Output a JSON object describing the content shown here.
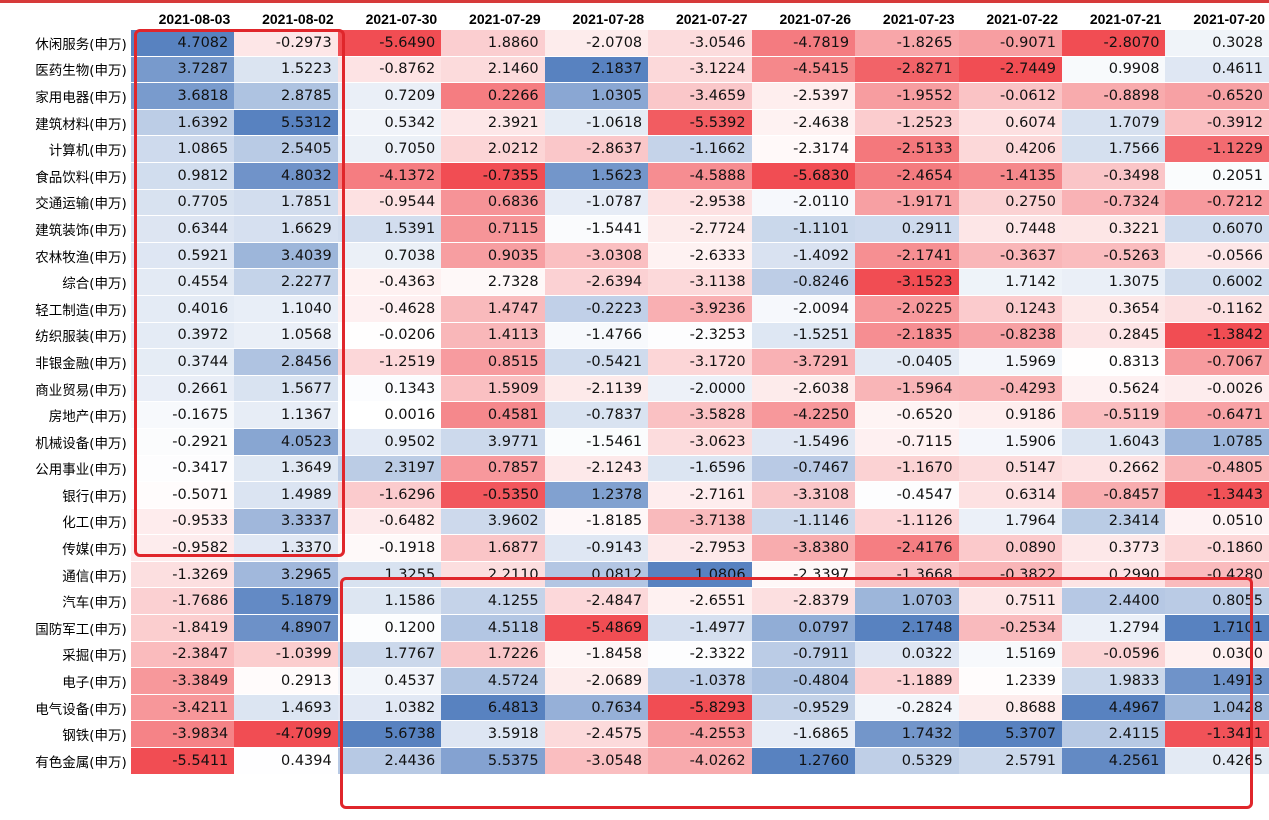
{
  "columns": [
    "2021-08-03",
    "2021-08-02",
    "2021-07-30",
    "2021-07-29",
    "2021-07-28",
    "2021-07-27",
    "2021-07-26",
    "2021-07-23",
    "2021-07-22",
    "2021-07-21",
    "2021-07-20"
  ],
  "colors": {
    "positive": "#4f7bbd",
    "negative": "#f0444a",
    "neutral": "#ffffff",
    "highlight_border": "#e0262b",
    "top_line": "#d63a3a"
  },
  "rows": [
    {
      "label": "休闲服务(申万)",
      "values": [
        "4.7082",
        "-0.2973",
        "-5.6490",
        "1.8860",
        "-2.0708",
        "-3.0546",
        "-4.7819",
        "-1.8265",
        "-0.9071",
        "-2.8070",
        "0.3028"
      ]
    },
    {
      "label": "医药生物(申万)",
      "values": [
        "3.7287",
        "1.5223",
        "-0.8762",
        "2.1460",
        "2.1837",
        "-3.1224",
        "-4.5415",
        "-2.8271",
        "-2.7449",
        "0.9908",
        "0.4611"
      ]
    },
    {
      "label": "家用电器(申万)",
      "values": [
        "3.6818",
        "2.8785",
        "0.7209",
        "0.2266",
        "1.0305",
        "-3.4659",
        "-2.5397",
        "-1.9552",
        "-0.0612",
        "-0.8898",
        "-0.6520"
      ]
    },
    {
      "label": "建筑材料(申万)",
      "values": [
        "1.6392",
        "5.5312",
        "0.5342",
        "2.3921",
        "-1.0618",
        "-5.5392",
        "-2.4638",
        "-1.2523",
        "0.6074",
        "1.7079",
        "-0.3912"
      ]
    },
    {
      "label": "计算机(申万)",
      "values": [
        "1.0865",
        "2.5405",
        "0.7050",
        "2.0212",
        "-2.8637",
        "-1.1662",
        "-2.3174",
        "-2.5133",
        "0.4206",
        "1.7566",
        "-1.1229"
      ]
    },
    {
      "label": "食品饮料(申万)",
      "values": [
        "0.9812",
        "4.8032",
        "-4.1372",
        "-0.7355",
        "1.5623",
        "-4.5888",
        "-5.6830",
        "-2.4654",
        "-1.4135",
        "-0.3498",
        "0.2051"
      ]
    },
    {
      "label": "交通运输(申万)",
      "values": [
        "0.7705",
        "1.7851",
        "-0.9544",
        "0.6836",
        "-1.0787",
        "-2.9538",
        "-2.0110",
        "-1.9171",
        "0.2750",
        "-0.7324",
        "-0.7212"
      ]
    },
    {
      "label": "建筑装饰(申万)",
      "values": [
        "0.6344",
        "1.6629",
        "1.5391",
        "0.7115",
        "-1.5441",
        "-2.7724",
        "-1.1101",
        "0.2911",
        "0.7448",
        "0.3221",
        "0.6070"
      ]
    },
    {
      "label": "农林牧渔(申万)",
      "values": [
        "0.5921",
        "3.4039",
        "0.7038",
        "0.9035",
        "-3.0308",
        "-2.6333",
        "-1.4092",
        "-2.1741",
        "-0.3637",
        "-0.5263",
        "-0.0566"
      ]
    },
    {
      "label": "综合(申万)",
      "values": [
        "0.4554",
        "2.2277",
        "-0.4363",
        "2.7328",
        "-2.6394",
        "-3.1138",
        "-0.8246",
        "-3.1523",
        "1.7142",
        "1.3075",
        "0.6002"
      ]
    },
    {
      "label": "轻工制造(申万)",
      "values": [
        "0.4016",
        "1.1040",
        "-0.4628",
        "1.4747",
        "-0.2223",
        "-3.9236",
        "-2.0094",
        "-2.0225",
        "0.1243",
        "0.3654",
        "-0.1162"
      ]
    },
    {
      "label": "纺织服装(申万)",
      "values": [
        "0.3972",
        "1.0568",
        "-0.0206",
        "1.4113",
        "-1.4766",
        "-2.3253",
        "-1.5251",
        "-2.1835",
        "-0.8238",
        "0.2845",
        "-1.3842"
      ]
    },
    {
      "label": "非银金融(申万)",
      "values": [
        "0.3744",
        "2.8456",
        "-1.2519",
        "0.8515",
        "-0.5421",
        "-3.1720",
        "-3.7291",
        "-0.0405",
        "1.5969",
        "0.8313",
        "-0.7067"
      ]
    },
    {
      "label": "商业贸易(申万)",
      "values": [
        "0.2661",
        "1.5677",
        "0.1343",
        "1.5909",
        "-2.1139",
        "-2.0000",
        "-2.6038",
        "-1.5964",
        "-0.4293",
        "0.5624",
        "-0.0026"
      ]
    },
    {
      "label": "房地产(申万)",
      "values": [
        "-0.1675",
        "1.1367",
        "0.0016",
        "0.4581",
        "-0.7837",
        "-3.5828",
        "-4.2250",
        "-0.6520",
        "0.9186",
        "-0.5119",
        "-0.6471"
      ]
    },
    {
      "label": "机械设备(申万)",
      "values": [
        "-0.2921",
        "4.0523",
        "0.9502",
        "3.9771",
        "-1.5461",
        "-3.0623",
        "-1.5496",
        "-0.7115",
        "1.5906",
        "1.6043",
        "1.0785"
      ]
    },
    {
      "label": "公用事业(申万)",
      "values": [
        "-0.3417",
        "1.3649",
        "2.3197",
        "0.7857",
        "-2.1243",
        "-1.6596",
        "-0.7467",
        "-1.1670",
        "0.5147",
        "0.2662",
        "-0.4805"
      ]
    },
    {
      "label": "银行(申万)",
      "values": [
        "-0.5071",
        "1.4989",
        "-1.6296",
        "-0.5350",
        "1.2378",
        "-2.7161",
        "-3.3108",
        "-0.4547",
        "0.6314",
        "-0.8457",
        "-1.3443"
      ]
    },
    {
      "label": "化工(申万)",
      "values": [
        "-0.9533",
        "3.3337",
        "-0.6482",
        "3.9602",
        "-1.8185",
        "-3.7138",
        "-1.1146",
        "-1.1126",
        "1.7964",
        "2.3414",
        "0.0510"
      ]
    },
    {
      "label": "传媒(申万)",
      "values": [
        "-0.9582",
        "1.3370",
        "-0.1918",
        "1.6877",
        "-0.9143",
        "-2.7953",
        "-3.8380",
        "-2.4176",
        "0.0890",
        "0.3773",
        "-0.1860"
      ]
    },
    {
      "label": "通信(申万)",
      "values": [
        "-1.3269",
        "3.2965",
        "1.3255",
        "2.2110",
        "0.0812",
        "1.0806",
        "-2.3397",
        "-1.3668",
        "-0.3822",
        "0.2990",
        "-0.4280"
      ]
    },
    {
      "label": "汽车(申万)",
      "values": [
        "-1.7686",
        "5.1879",
        "1.1586",
        "4.1255",
        "-2.4847",
        "-2.6551",
        "-2.8379",
        "1.0703",
        "0.7511",
        "2.4400",
        "0.8055"
      ]
    },
    {
      "label": "国防军工(申万)",
      "values": [
        "-1.8419",
        "4.8907",
        "0.1200",
        "4.5118",
        "-5.4869",
        "-1.4977",
        "0.0797",
        "2.1748",
        "-0.2534",
        "1.2794",
        "1.7101"
      ]
    },
    {
      "label": "采掘(申万)",
      "values": [
        "-2.3847",
        "-1.0399",
        "1.7767",
        "1.7226",
        "-1.8458",
        "-2.3322",
        "-0.7911",
        "0.0322",
        "1.5169",
        "-0.0596",
        "0.0300"
      ]
    },
    {
      "label": "电子(申万)",
      "values": [
        "-3.3849",
        "0.2913",
        "0.4537",
        "4.5724",
        "-2.0689",
        "-1.0378",
        "-0.4804",
        "-1.1889",
        "1.2339",
        "1.9833",
        "1.4913"
      ]
    },
    {
      "label": "电气设备(申万)",
      "values": [
        "-3.4211",
        "1.4693",
        "1.0382",
        "6.4813",
        "0.7634",
        "-5.8293",
        "-0.9529",
        "-0.2824",
        "0.8688",
        "4.4967",
        "1.0428"
      ]
    },
    {
      "label": "钢铁(申万)",
      "values": [
        "-3.9834",
        "-4.7099",
        "5.6738",
        "3.5918",
        "-2.4575",
        "-4.2553",
        "-1.6865",
        "1.7432",
        "5.3707",
        "2.4115",
        "-1.3411"
      ]
    },
    {
      "label": "有色金属(申万)",
      "values": [
        "-5.5411",
        "0.4394",
        "2.4436",
        "5.5375",
        "-3.0548",
        "-4.0262",
        "1.2760",
        "0.5329",
        "2.5791",
        "4.2561",
        "0.4265"
      ]
    }
  ]
}
